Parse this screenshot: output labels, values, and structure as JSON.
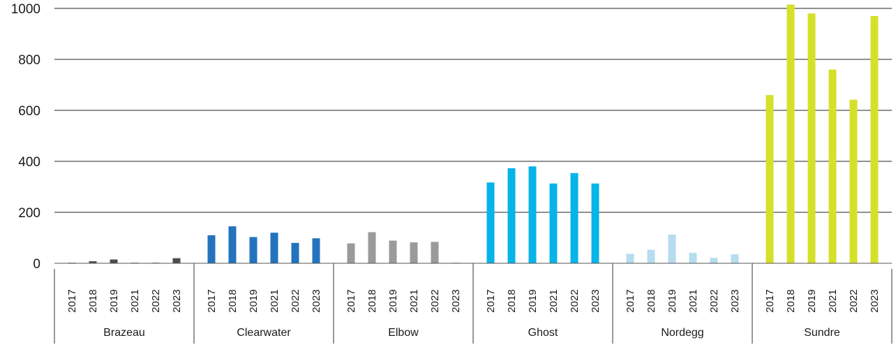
{
  "chart_data": {
    "type": "bar",
    "title": "",
    "xlabel": "",
    "ylabel": "",
    "ylim": [
      0,
      1000
    ],
    "yticks": [
      0,
      200,
      400,
      600,
      800,
      1000
    ],
    "grid": true,
    "legend": "none",
    "years": [
      "2017",
      "2018",
      "2019",
      "2021",
      "2022",
      "2023"
    ],
    "groups": [
      {
        "name": "Brazeau",
        "color": "#4d4d4d",
        "values": [
          2,
          8,
          15,
          2,
          2,
          20
        ]
      },
      {
        "name": "Clearwater",
        "color": "#2473be",
        "values": [
          110,
          145,
          103,
          120,
          80,
          98
        ]
      },
      {
        "name": "Elbow",
        "color": "#9a9a9c",
        "values": [
          78,
          122,
          89,
          82,
          84,
          2
        ]
      },
      {
        "name": "Ghost",
        "color": "#06b4e8",
        "values": [
          317,
          373,
          380,
          313,
          354,
          313
        ]
      },
      {
        "name": "Nordegg",
        "color": "#b7dcef",
        "values": [
          37,
          53,
          113,
          41,
          21,
          35
        ]
      },
      {
        "name": "Sundre",
        "color": "#d5e02a",
        "values": [
          660,
          1015,
          980,
          760,
          642,
          970
        ]
      }
    ]
  }
}
